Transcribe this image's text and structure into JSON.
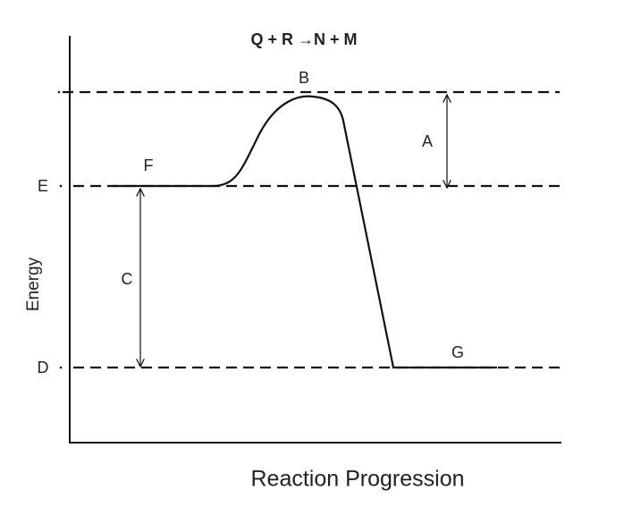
{
  "title": "Q + R →N + M",
  "axes": {
    "y_label": "Energy",
    "x_label": "Reaction Progression"
  },
  "labels": {
    "A": "A",
    "B": "B",
    "C": "C",
    "D": "D",
    "E": "E",
    "F": "F",
    "G": "G"
  }
}
